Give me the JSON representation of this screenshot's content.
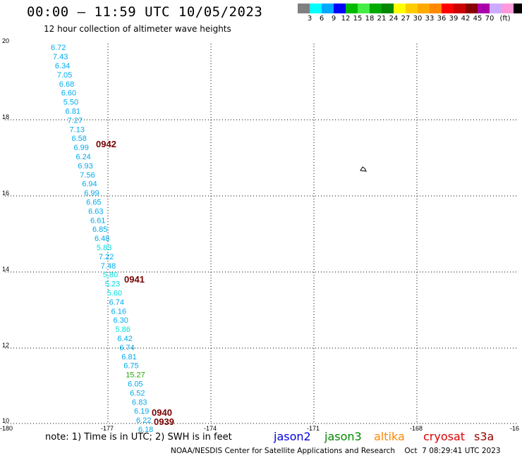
{
  "title": "00:00 – 11:59 UTC 10/05/2023",
  "subtitle": "12 hour collection of altimeter wave heights",
  "legend": {
    "unit": "(ft)",
    "colors": [
      "#808080",
      "#00ffff",
      "#00aaff",
      "#0000ff",
      "#00bb00",
      "#44ee44",
      "#00aa00",
      "#008800",
      "#ffff00",
      "#ffcc00",
      "#ffaa00",
      "#ff8800",
      "#ff0000",
      "#cc0000",
      "#880000",
      "#aa00aa",
      "#ccaaff",
      "#ff99dd",
      "#000000"
    ],
    "labels": [
      "3",
      "6",
      "9",
      "12",
      "15",
      "18",
      "21",
      "24",
      "27",
      "30",
      "33",
      "36",
      "39",
      "42",
      "45",
      "70"
    ]
  },
  "axes": {
    "x_ticks": [
      "-180",
      "-177",
      "-174",
      "-171",
      "-168",
      "-16"
    ],
    "y_ticks": [
      "20",
      "18",
      "16",
      "14",
      "12",
      "10"
    ]
  },
  "wave_heights": [
    {
      "v": "6.72",
      "c": "#00aaee"
    },
    {
      "v": "7.43",
      "c": "#00aaee"
    },
    {
      "v": "6.34",
      "c": "#00aaee"
    },
    {
      "v": "7.05",
      "c": "#00aaee"
    },
    {
      "v": "6.68",
      "c": "#00aaee"
    },
    {
      "v": "6.60",
      "c": "#00aaee"
    },
    {
      "v": "5.50",
      "c": "#00aaee"
    },
    {
      "v": "6.81",
      "c": "#00aaee"
    },
    {
      "v": "7.27",
      "c": "#00aaee"
    },
    {
      "v": "7.13",
      "c": "#00aaee"
    },
    {
      "v": "6.58",
      "c": "#00aaee"
    },
    {
      "v": "6.99",
      "c": "#00aaee"
    },
    {
      "v": "6.24",
      "c": "#00aaee"
    },
    {
      "v": "6.93",
      "c": "#00aaee"
    },
    {
      "v": "7.56",
      "c": "#00aaee"
    },
    {
      "v": "6.94",
      "c": "#00aaee"
    },
    {
      "v": "6.99",
      "c": "#00aaee"
    },
    {
      "v": "6.65",
      "c": "#00aaee"
    },
    {
      "v": "6.63",
      "c": "#00aaee"
    },
    {
      "v": "6.61",
      "c": "#00aaee"
    },
    {
      "v": "6.85",
      "c": "#00aaee"
    },
    {
      "v": "6.48",
      "c": "#00aaee"
    },
    {
      "v": "5.83",
      "c": "#00dddd"
    },
    {
      "v": "7.22",
      "c": "#00aaee"
    },
    {
      "v": "7.48",
      "c": "#00aaee"
    },
    {
      "v": "5.80",
      "c": "#00dddd"
    },
    {
      "v": "5.23",
      "c": "#00dddd"
    },
    {
      "v": "5.60",
      "c": "#00dddd"
    },
    {
      "v": "6.74",
      "c": "#00aaee"
    },
    {
      "v": "6.16",
      "c": "#00aaee"
    },
    {
      "v": "6.30",
      "c": "#00aaee"
    },
    {
      "v": "5.86",
      "c": "#00dddd"
    },
    {
      "v": "6.42",
      "c": "#00aaee"
    },
    {
      "v": "6.74",
      "c": "#00aaee"
    },
    {
      "v": "6.81",
      "c": "#00aaee"
    },
    {
      "v": "6.75",
      "c": "#00aaee"
    },
    {
      "v": "15.27",
      "c": "#22aa00"
    },
    {
      "v": "6.05",
      "c": "#00aaee"
    },
    {
      "v": "6.52",
      "c": "#00aaee"
    },
    {
      "v": "6.83",
      "c": "#00aaee"
    },
    {
      "v": "6.19",
      "c": "#00aaee"
    },
    {
      "v": "6.22",
      "c": "#00aaee"
    },
    {
      "v": "6.18",
      "c": "#00aaee"
    }
  ],
  "time_labels": [
    "0942",
    "0941",
    "0940",
    "0939"
  ],
  "note": "note:  1) Time is in UTC;  2) SWH is in feet",
  "satellites": [
    {
      "name": "jason2",
      "color": "#0000dd"
    },
    {
      "name": "jason3",
      "color": "#008800"
    },
    {
      "name": "altika",
      "color": "#ff8800"
    },
    {
      "name": "cryosat",
      "color": "#dd0000"
    },
    {
      "name": "s3a",
      "color": "#990000"
    }
  ],
  "footer": "NOAA/NESDIS Center for Satellite Applications and Research    Oct  7 08:29:41 UTC 2023"
}
